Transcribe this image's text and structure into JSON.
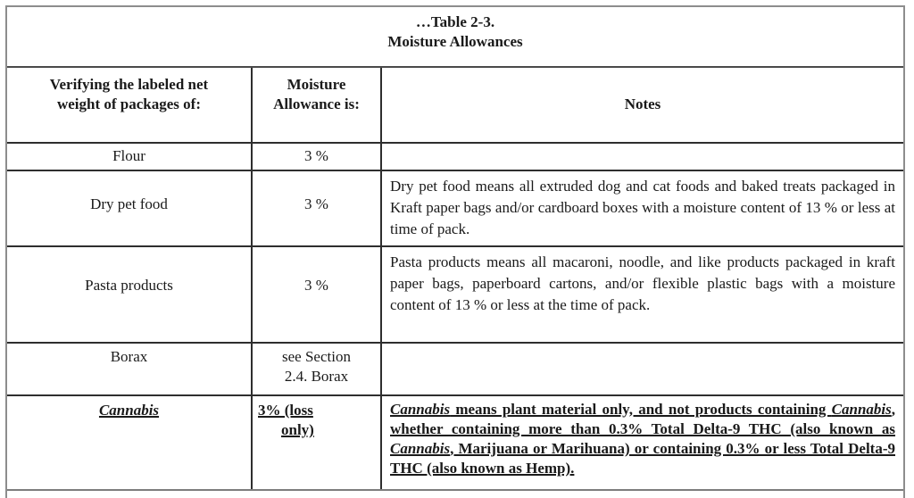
{
  "table": {
    "title_lines": [
      "…Table 2-3.",
      "Moisture Allowances"
    ],
    "headers": {
      "product_lines": [
        "Verifying the labeled net",
        "weight of packages of:"
      ],
      "allowance_lines": [
        "Moisture",
        "Allowance is:"
      ],
      "notes": "Notes"
    },
    "rows": [
      {
        "product": "Flour",
        "allowance": "3 %",
        "notes": ""
      },
      {
        "product": "Dry pet food",
        "allowance": "3 %",
        "notes": "Dry pet food means all extruded dog and cat foods and baked treats packaged in Kraft paper bags and/or cardboard boxes with a moisture content of 13 % or less at time of pack."
      },
      {
        "product": "Pasta products",
        "allowance": "3 %",
        "notes": "Pasta products means all macaroni, noodle, and like products packaged in kraft paper bags, paperboard cartons, and/or flexible plastic bags with a moisture content of 13 % or less at the time of pack."
      },
      {
        "product": "Borax",
        "allowance_lines": [
          "see Section",
          "2.4. Borax"
        ],
        "notes": ""
      },
      {
        "product": "Cannabis",
        "allowance_lines": [
          "3% (loss",
          "only)"
        ],
        "notes_rich": [
          {
            "text": "Cannabis",
            "italic": true
          },
          {
            "text": " means plant material only, and not products containing ",
            "italic": false
          },
          {
            "text": "Cannabis",
            "italic": true
          },
          {
            "text": ", whether containing more than 0.3% Total Delta-9 THC (also known as ",
            "italic": false
          },
          {
            "text": "Cannabis",
            "italic": true
          },
          {
            "text": ", Marijuana or Marihuana) or containing 0.3% or less Total Delta-9 THC (also known as Hemp).",
            "italic": false
          }
        ]
      }
    ]
  },
  "colors": {
    "text": "#1a1a1a",
    "border_inner": "#2e2e2e",
    "border_outer": "#8d8d8d",
    "background": "#ffffff"
  }
}
